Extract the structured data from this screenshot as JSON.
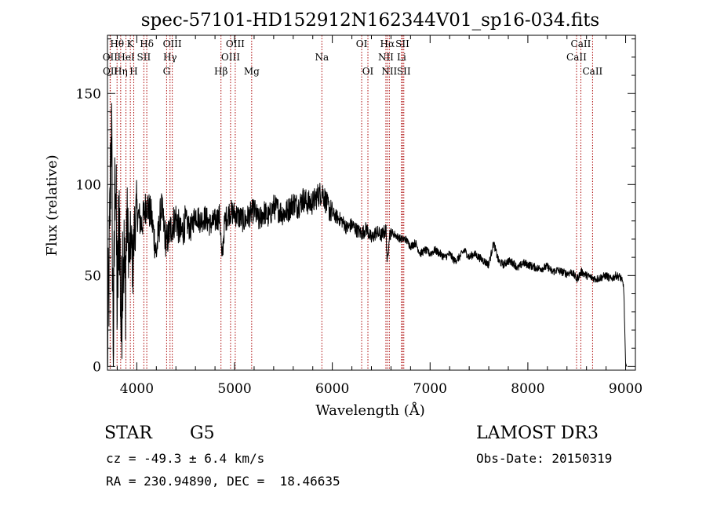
{
  "chart_data": {
    "type": "line",
    "title": "spec-57101-HD152912N162344V01_sp16-034.fits",
    "xlabel": "Wavelength (Å)",
    "ylabel": "Flux (relative)",
    "xlim": [
      3700,
      9100
    ],
    "ylim": [
      -2,
      182
    ],
    "xticks": [
      4000,
      5000,
      6000,
      7000,
      8000,
      9000
    ],
    "yticks": [
      0,
      50,
      100,
      150
    ],
    "series": [
      {
        "name": "flux",
        "x": [
          3700,
          3720,
          3740,
          3760,
          3780,
          3800,
          3820,
          3840,
          3860,
          3880,
          3900,
          3920,
          3940,
          3960,
          3980,
          4000,
          4050,
          4100,
          4150,
          4200,
          4250,
          4300,
          4350,
          4400,
          4450,
          4500,
          4550,
          4600,
          4650,
          4700,
          4750,
          4800,
          4850,
          4870,
          4900,
          4950,
          5000,
          5050,
          5100,
          5150,
          5200,
          5250,
          5300,
          5350,
          5400,
          5450,
          5500,
          5550,
          5600,
          5650,
          5700,
          5750,
          5800,
          5850,
          5900,
          5950,
          6000,
          6050,
          6100,
          6150,
          6200,
          6250,
          6300,
          6350,
          6400,
          6450,
          6500,
          6550,
          6563,
          6580,
          6600,
          6650,
          6700,
          6750,
          6800,
          6850,
          6900,
          6950,
          7000,
          7050,
          7100,
          7150,
          7200,
          7250,
          7300,
          7350,
          7400,
          7450,
          7500,
          7550,
          7600,
          7650,
          7700,
          7750,
          7800,
          7850,
          7900,
          7950,
          8000,
          8050,
          8100,
          8150,
          8200,
          8250,
          8300,
          8350,
          8400,
          8450,
          8500,
          8550,
          8600,
          8650,
          8700,
          8750,
          8800,
          8850,
          8900,
          8950,
          8980,
          9000,
          9010
        ],
        "y": [
          8,
          60,
          140,
          2,
          120,
          30,
          90,
          20,
          75,
          40,
          85,
          60,
          70,
          55,
          80,
          85,
          78,
          90,
          82,
          62,
          88,
          68,
          76,
          82,
          72,
          80,
          75,
          84,
          80,
          82,
          78,
          80,
          83,
          58,
          80,
          85,
          84,
          82,
          80,
          83,
          86,
          80,
          85,
          82,
          88,
          86,
          84,
          86,
          90,
          88,
          92,
          90,
          90,
          94,
          96,
          88,
          84,
          82,
          80,
          76,
          78,
          75,
          73,
          76,
          70,
          74,
          72,
          75,
          55,
          72,
          74,
          72,
          70,
          70,
          66,
          68,
          62,
          64,
          62,
          64,
          62,
          60,
          62,
          58,
          60,
          64,
          60,
          62,
          60,
          58,
          56,
          68,
          58,
          56,
          58,
          57,
          54,
          57,
          56,
          55,
          54,
          54,
          55,
          52,
          53,
          52,
          51,
          52,
          48,
          52,
          50,
          49,
          48,
          49,
          50,
          48,
          50,
          49,
          44,
          2,
          0
        ]
      }
    ],
    "lines": [
      {
        "label": "Hθ",
        "x": 3798,
        "row": 0
      },
      {
        "label": "OII",
        "x": 3727,
        "row": 1
      },
      {
        "label": "OII",
        "x": 3729,
        "row": 2
      },
      {
        "label": "Hη",
        "x": 3835,
        "row": 2
      },
      {
        "label": "K",
        "x": 3934,
        "row": 0
      },
      {
        "label": "H",
        "x": 3969,
        "row": 2
      },
      {
        "label": "HeI",
        "x": 3889,
        "row": 1
      },
      {
        "label": "SII",
        "x": 4072,
        "row": 1
      },
      {
        "label": "Hδ",
        "x": 4102,
        "row": 0
      },
      {
        "label": "OIII",
        "x": 4363,
        "row": 0
      },
      {
        "label": "Hγ",
        "x": 4340,
        "row": 1
      },
      {
        "label": "G",
        "x": 4305,
        "row": 2
      },
      {
        "label": "Hβ",
        "x": 4861,
        "row": 2
      },
      {
        "label": "OIII",
        "x": 5007,
        "row": 0
      },
      {
        "label": "OIII",
        "x": 4959,
        "row": 1
      },
      {
        "label": "Mg",
        "x": 5175,
        "row": 2
      },
      {
        "label": "Na",
        "x": 5893,
        "row": 1
      },
      {
        "label": "OI",
        "x": 6300,
        "row": 0
      },
      {
        "label": "OI",
        "x": 6364,
        "row": 2
      },
      {
        "label": "Hα",
        "x": 6563,
        "row": 0
      },
      {
        "label": "NII",
        "x": 6548,
        "row": 1
      },
      {
        "label": "NII",
        "x": 6583,
        "row": 2
      },
      {
        "label": "SII",
        "x": 6717,
        "row": 0
      },
      {
        "label": "Li",
        "x": 6708,
        "row": 1
      },
      {
        "label": "SII",
        "x": 6731,
        "row": 2
      },
      {
        "label": "CaII",
        "x": 8542,
        "row": 0
      },
      {
        "label": "CaII",
        "x": 8498,
        "row": 1
      },
      {
        "label": "CaII",
        "x": 8662,
        "row": 2
      }
    ]
  },
  "info": {
    "object_class": "STAR",
    "subclass": "G5",
    "survey": "LAMOST DR3",
    "redshift": "cz = -49.3 ± 6.4 km/s",
    "obs_date": "Obs-Date: 20150319",
    "coords": "RA = 230.94890, DEC =  18.46635"
  },
  "colors": {
    "line_marker": "#aa0000",
    "spectrum": "#000000"
  }
}
